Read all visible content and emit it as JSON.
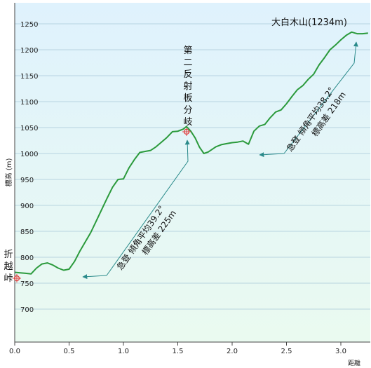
{
  "chart_data": {
    "type": "area",
    "title": "",
    "xlabel": "距離",
    "ylabel": "標高 (m)",
    "xlim": [
      0,
      3.25
    ],
    "ylim": [
      650,
      1300
    ],
    "x_ticks": [
      "0.0",
      "0.5",
      "1.0",
      "1.5",
      "2.0",
      "2.5",
      "3.0"
    ],
    "y_ticks": [
      "700",
      "750",
      "800",
      "850",
      "900",
      "950",
      "1000",
      "1050",
      "1100",
      "1150",
      "1200",
      "1250"
    ],
    "grid": true,
    "colors": {
      "line": "#2b9a3c",
      "fill_top": "#e2f4ff",
      "fill_bottom": "#e9faef",
      "grid": "#a9c9d9",
      "axis": "#444444",
      "marker": "#e04040",
      "arrow": "#2a8a8a"
    },
    "series": [
      {
        "x": [
          0.0,
          0.05,
          0.1,
          0.15,
          0.2,
          0.25,
          0.3,
          0.35,
          0.4,
          0.45,
          0.5,
          0.55,
          0.6,
          0.65,
          0.7,
          0.75,
          0.8,
          0.85,
          0.9,
          0.95,
          1.0,
          1.05,
          1.1,
          1.15,
          1.2,
          1.25,
          1.3,
          1.35,
          1.4,
          1.45,
          1.5,
          1.55,
          1.58,
          1.62,
          1.66,
          1.7,
          1.74,
          1.78,
          1.85,
          1.9,
          1.95,
          2.0,
          2.05,
          2.1,
          2.15,
          2.2,
          2.25,
          2.3,
          2.35,
          2.4,
          2.45,
          2.5,
          2.55,
          2.6,
          2.65,
          2.7,
          2.75,
          2.8,
          2.85,
          2.9,
          2.95,
          3.0,
          3.05,
          3.1,
          3.15,
          3.2,
          3.25
        ],
        "y": [
          771,
          770,
          769,
          768,
          779,
          787,
          789,
          785,
          779,
          775,
          777,
          792,
          812,
          830,
          848,
          870,
          892,
          914,
          935,
          950,
          951,
          972,
          988,
          1002,
          1004,
          1006,
          1013,
          1022,
          1031,
          1042,
          1043,
          1047,
          1052,
          1043,
          1030,
          1012,
          1000,
          1003,
          1013,
          1017,
          1019,
          1021,
          1022,
          1024,
          1018,
          1043,
          1053,
          1056,
          1069,
          1080,
          1084,
          1096,
          1110,
          1123,
          1131,
          1143,
          1153,
          1171,
          1185,
          1200,
          1209,
          1219,
          1228,
          1234,
          1231,
          1231,
          1232
        ]
      }
    ],
    "annotations": {
      "peak_label": "大白木山(1234m)",
      "fork_label": [
        "第",
        "二",
        "反",
        "射",
        "板",
        "分",
        "岐"
      ],
      "pass_label": [
        "折",
        "越",
        "峠"
      ],
      "slope1_line1": "急登 傾角平均39.2°",
      "slope1_line2": "標高差 225m",
      "slope2_line1": "急登 傾角平均38.2°",
      "slope2_line2": "標高差 218m"
    }
  }
}
